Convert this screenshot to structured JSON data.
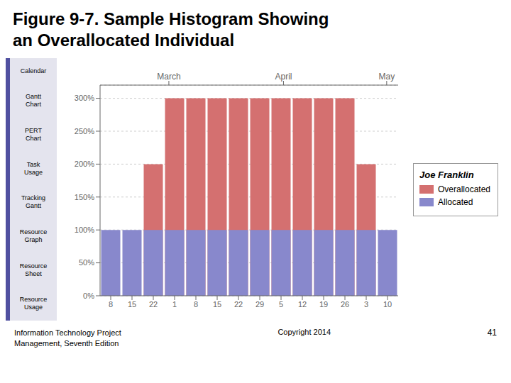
{
  "chart_data": {
    "type": "bar",
    "title": "Figure 9-7. Sample Histogram Showing\nan Overallocated Individual",
    "categories": [
      "8",
      "15",
      "22",
      "1",
      "8",
      "15",
      "22",
      "29",
      "5",
      "12",
      "19",
      "26",
      "3",
      "10"
    ],
    "series": [
      {
        "name": "Overallocated",
        "color": "#d47070",
        "values": [
          0,
          0,
          200,
          300,
          300,
          300,
          300,
          300,
          300,
          300,
          300,
          300,
          200,
          0
        ]
      },
      {
        "name": "Allocated",
        "color": "#8888cc",
        "values": [
          100,
          100,
          100,
          100,
          100,
          100,
          100,
          100,
          100,
          100,
          100,
          100,
          100,
          100
        ]
      }
    ],
    "ylim": [
      0,
      320
    ],
    "yticks": [
      {
        "value": 0,
        "label": "0%"
      },
      {
        "value": 50,
        "label": "50%"
      },
      {
        "value": 100,
        "label": "100%"
      },
      {
        "value": 150,
        "label": "150%"
      },
      {
        "value": 200,
        "label": "200%"
      },
      {
        "value": 250,
        "label": "250%"
      },
      {
        "value": 300,
        "label": "300%"
      }
    ],
    "grid": true,
    "legend": "right",
    "annotations": [
      {
        "text": "March",
        "x": 3.0
      },
      {
        "text": "April",
        "x": 8.0
      },
      {
        "text": "May",
        "x": 12.5
      },
      {
        "text": "Joe Franklin"
      },
      {
        "text": "Calendar"
      },
      {
        "text": "Gantt\nChart"
      },
      {
        "text": "PERT\nChart"
      },
      {
        "text": "Task\nUsage"
      },
      {
        "text": "Tracking\nGantt"
      },
      {
        "text": "Resource\nGraph"
      },
      {
        "text": "Resource\nSheet"
      },
      {
        "text": "Resource\nUsage"
      },
      {
        "text": "Information Technology Project\nManagement, Seventh Edition"
      },
      {
        "text": "Copyright 2014"
      },
      {
        "text": "41"
      }
    ]
  }
}
